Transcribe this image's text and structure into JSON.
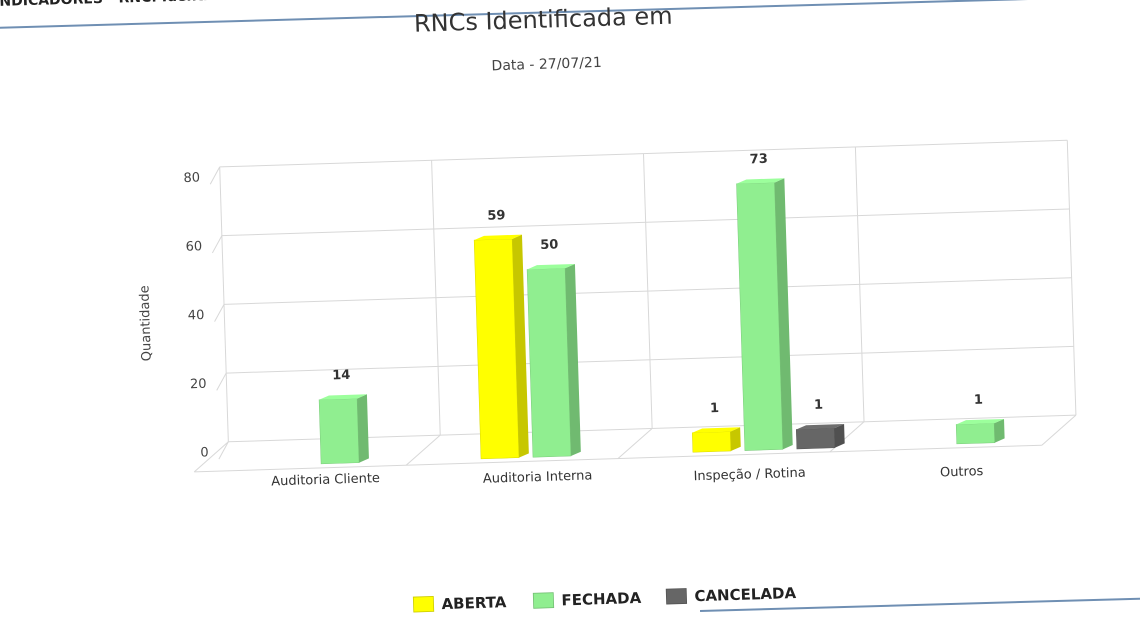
{
  "header": {
    "text": "INDICADORES - RNC: Identifi"
  },
  "chart_data": {
    "type": "bar",
    "title": "RNCs Identificada em",
    "subtitle": "Data - 27/07/21",
    "ylabel": "Quantidade",
    "xlabel": "",
    "ylim": [
      0,
      80
    ],
    "yticks": [
      "0",
      "20",
      "40",
      "60",
      "80"
    ],
    "categories": [
      "Auditoria Cliente",
      "Auditoria Interna",
      "Inspeção / Rotina",
      "Outros"
    ],
    "series": [
      {
        "name": "ABERTA",
        "color": "#ffff00",
        "values": [
          null,
          59,
          1,
          null
        ]
      },
      {
        "name": "FECHADA",
        "color": "#90ee90",
        "values": [
          14,
          50,
          73,
          1
        ]
      },
      {
        "name": "CANCELADA",
        "color": "#666666",
        "values": [
          null,
          null,
          1,
          null
        ]
      }
    ],
    "data_labels": true,
    "grid": true,
    "legend_position": "bottom"
  }
}
